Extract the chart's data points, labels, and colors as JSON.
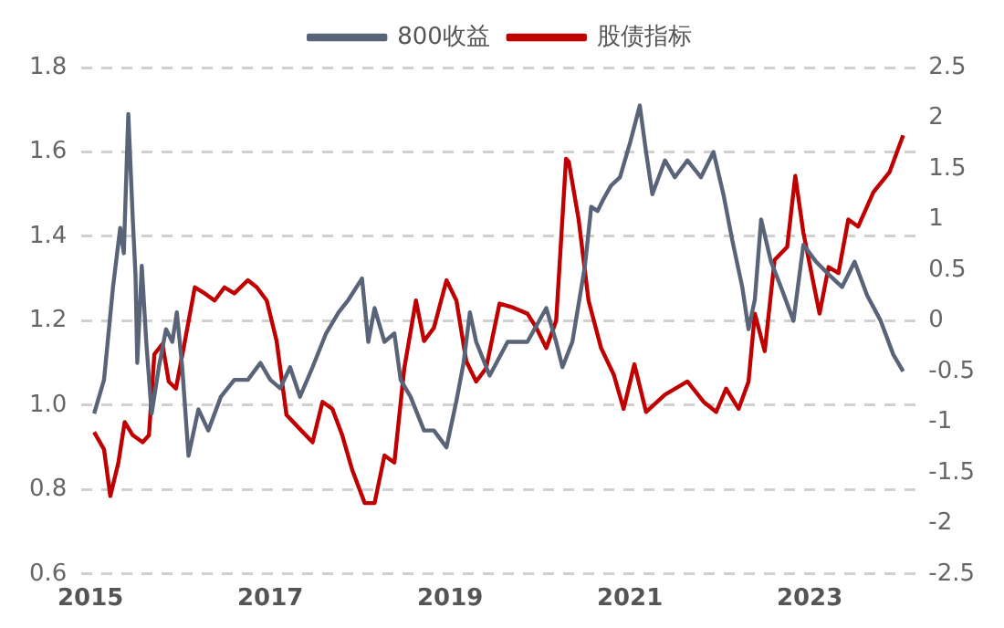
{
  "chart_data": {
    "type": "line",
    "legend": "top",
    "grid": "y",
    "marker": "none",
    "line_style": "solid",
    "xlim": [
      2014.9,
      2024.2
    ],
    "xticks": [
      2015,
      2017,
      2019,
      2021,
      2023
    ],
    "ylim": [
      0.6,
      1.8
    ],
    "yticks": [
      0.6,
      0.8,
      {
        "value": 1,
        "label": "1.0"
      },
      1.2,
      1.4,
      1.6,
      1.8
    ],
    "y2lim": [
      -2.5,
      2.5
    ],
    "y2ticks": [
      -2.5,
      -2,
      -1.5,
      -1,
      -0.5,
      0,
      0.5,
      1,
      1.5,
      2,
      2.5
    ],
    "series": [
      {
        "name": "800收益",
        "color": "#5a6478",
        "x": [
          2015.04,
          2015.15,
          2015.25,
          2015.33,
          2015.37,
          2015.42,
          2015.47,
          2015.5,
          2015.52,
          2015.57,
          2015.62,
          2015.68,
          2015.76,
          2015.84,
          2015.91,
          2015.96,
          2016.02,
          2016.09,
          2016.2,
          2016.31,
          2016.45,
          2016.6,
          2016.75,
          2016.89,
          2017.0,
          2017.11,
          2017.22,
          2017.33,
          2017.47,
          2017.62,
          2017.76,
          2017.87,
          2018.02,
          2018.09,
          2018.16,
          2018.27,
          2018.38,
          2018.45,
          2018.56,
          2018.71,
          2018.82,
          2018.96,
          2019.07,
          2019.15,
          2019.22,
          2019.29,
          2019.44,
          2019.64,
          2019.86,
          2020.07,
          2020.18,
          2020.25,
          2020.36,
          2020.5,
          2020.57,
          2020.64,
          2020.71,
          2020.79,
          2020.89,
          2021.0,
          2021.11,
          2021.18,
          2021.25,
          2021.39,
          2021.5,
          2021.64,
          2021.79,
          2021.93,
          2022.04,
          2022.14,
          2022.25,
          2022.32,
          2022.39,
          2022.46,
          2022.57,
          2022.68,
          2022.82,
          2022.93,
          2023.07,
          2023.21,
          2023.36,
          2023.5,
          2023.64,
          2023.79,
          2023.93,
          2024.04
        ],
        "values": [
          0.98,
          1.06,
          1.28,
          1.42,
          1.36,
          1.69,
          1.44,
          1.31,
          1.1,
          1.33,
          1.15,
          0.98,
          1.09,
          1.18,
          1.15,
          1.22,
          1.09,
          0.88,
          0.99,
          0.94,
          1.02,
          1.06,
          1.06,
          1.1,
          1.06,
          1.04,
          1.09,
          1.02,
          1.09,
          1.17,
          1.22,
          1.25,
          1.3,
          1.15,
          1.23,
          1.15,
          1.17,
          1.06,
          1.02,
          0.94,
          0.94,
          0.9,
          1.01,
          1.1,
          1.22,
          1.15,
          1.07,
          1.15,
          1.15,
          1.23,
          1.15,
          1.09,
          1.15,
          1.33,
          1.47,
          1.46,
          1.49,
          1.52,
          1.54,
          1.62,
          1.71,
          1.6,
          1.5,
          1.58,
          1.54,
          1.58,
          1.54,
          1.6,
          1.5,
          1.39,
          1.28,
          1.18,
          1.25,
          1.44,
          1.34,
          1.28,
          1.2,
          1.38,
          1.34,
          1.31,
          1.28,
          1.34,
          1.26,
          1.2,
          1.12,
          1.08
        ]
      },
      {
        "name": "股债指标",
        "color": "#c00000",
        "axis": "y2",
        "x": [
          2015.04,
          2015.15,
          2015.22,
          2015.31,
          2015.38,
          2015.47,
          2015.58,
          2015.65,
          2015.71,
          2015.8,
          2015.87,
          2015.95,
          2016.05,
          2016.16,
          2016.27,
          2016.38,
          2016.49,
          2016.6,
          2016.75,
          2016.85,
          2016.96,
          2017.07,
          2017.18,
          2017.33,
          2017.47,
          2017.58,
          2017.69,
          2017.8,
          2017.91,
          2018.05,
          2018.16,
          2018.27,
          2018.38,
          2018.49,
          2018.62,
          2018.71,
          2018.82,
          2018.96,
          2019.07,
          2019.18,
          2019.29,
          2019.4,
          2019.55,
          2019.7,
          2019.86,
          2019.96,
          2020.07,
          2020.18,
          2020.29,
          2020.32,
          2020.43,
          2020.54,
          2020.68,
          2020.82,
          2020.93,
          2021.05,
          2021.18,
          2021.39,
          2021.64,
          2021.82,
          2021.96,
          2022.07,
          2022.21,
          2022.32,
          2022.39,
          2022.5,
          2022.61,
          2022.75,
          2022.84,
          2022.93,
          2023.11,
          2023.21,
          2023.32,
          2023.43,
          2023.54,
          2023.71,
          2023.89,
          2024.04
        ],
        "values": [
          -1.1,
          -1.27,
          -1.73,
          -1.4,
          -1.0,
          -1.13,
          -1.2,
          -1.13,
          -0.33,
          -0.23,
          -0.6,
          -0.67,
          -0.2,
          0.33,
          0.27,
          0.2,
          0.33,
          0.27,
          0.4,
          0.33,
          0.2,
          -0.2,
          -0.93,
          -1.07,
          -1.2,
          -0.8,
          -0.87,
          -1.13,
          -1.47,
          -1.8,
          -1.8,
          -1.33,
          -1.4,
          -0.47,
          0.2,
          -0.2,
          -0.07,
          0.4,
          0.2,
          -0.4,
          -0.6,
          -0.47,
          0.17,
          0.13,
          0.07,
          -0.07,
          -0.27,
          0.0,
          1.6,
          1.57,
          1.0,
          0.2,
          -0.27,
          -0.53,
          -0.87,
          -0.43,
          -0.9,
          -0.73,
          -0.6,
          -0.8,
          -0.9,
          -0.67,
          -0.87,
          -0.6,
          0.07,
          -0.3,
          0.6,
          0.73,
          1.43,
          0.87,
          0.07,
          0.53,
          0.47,
          1.0,
          0.93,
          1.27,
          1.47,
          1.83
        ]
      }
    ]
  }
}
